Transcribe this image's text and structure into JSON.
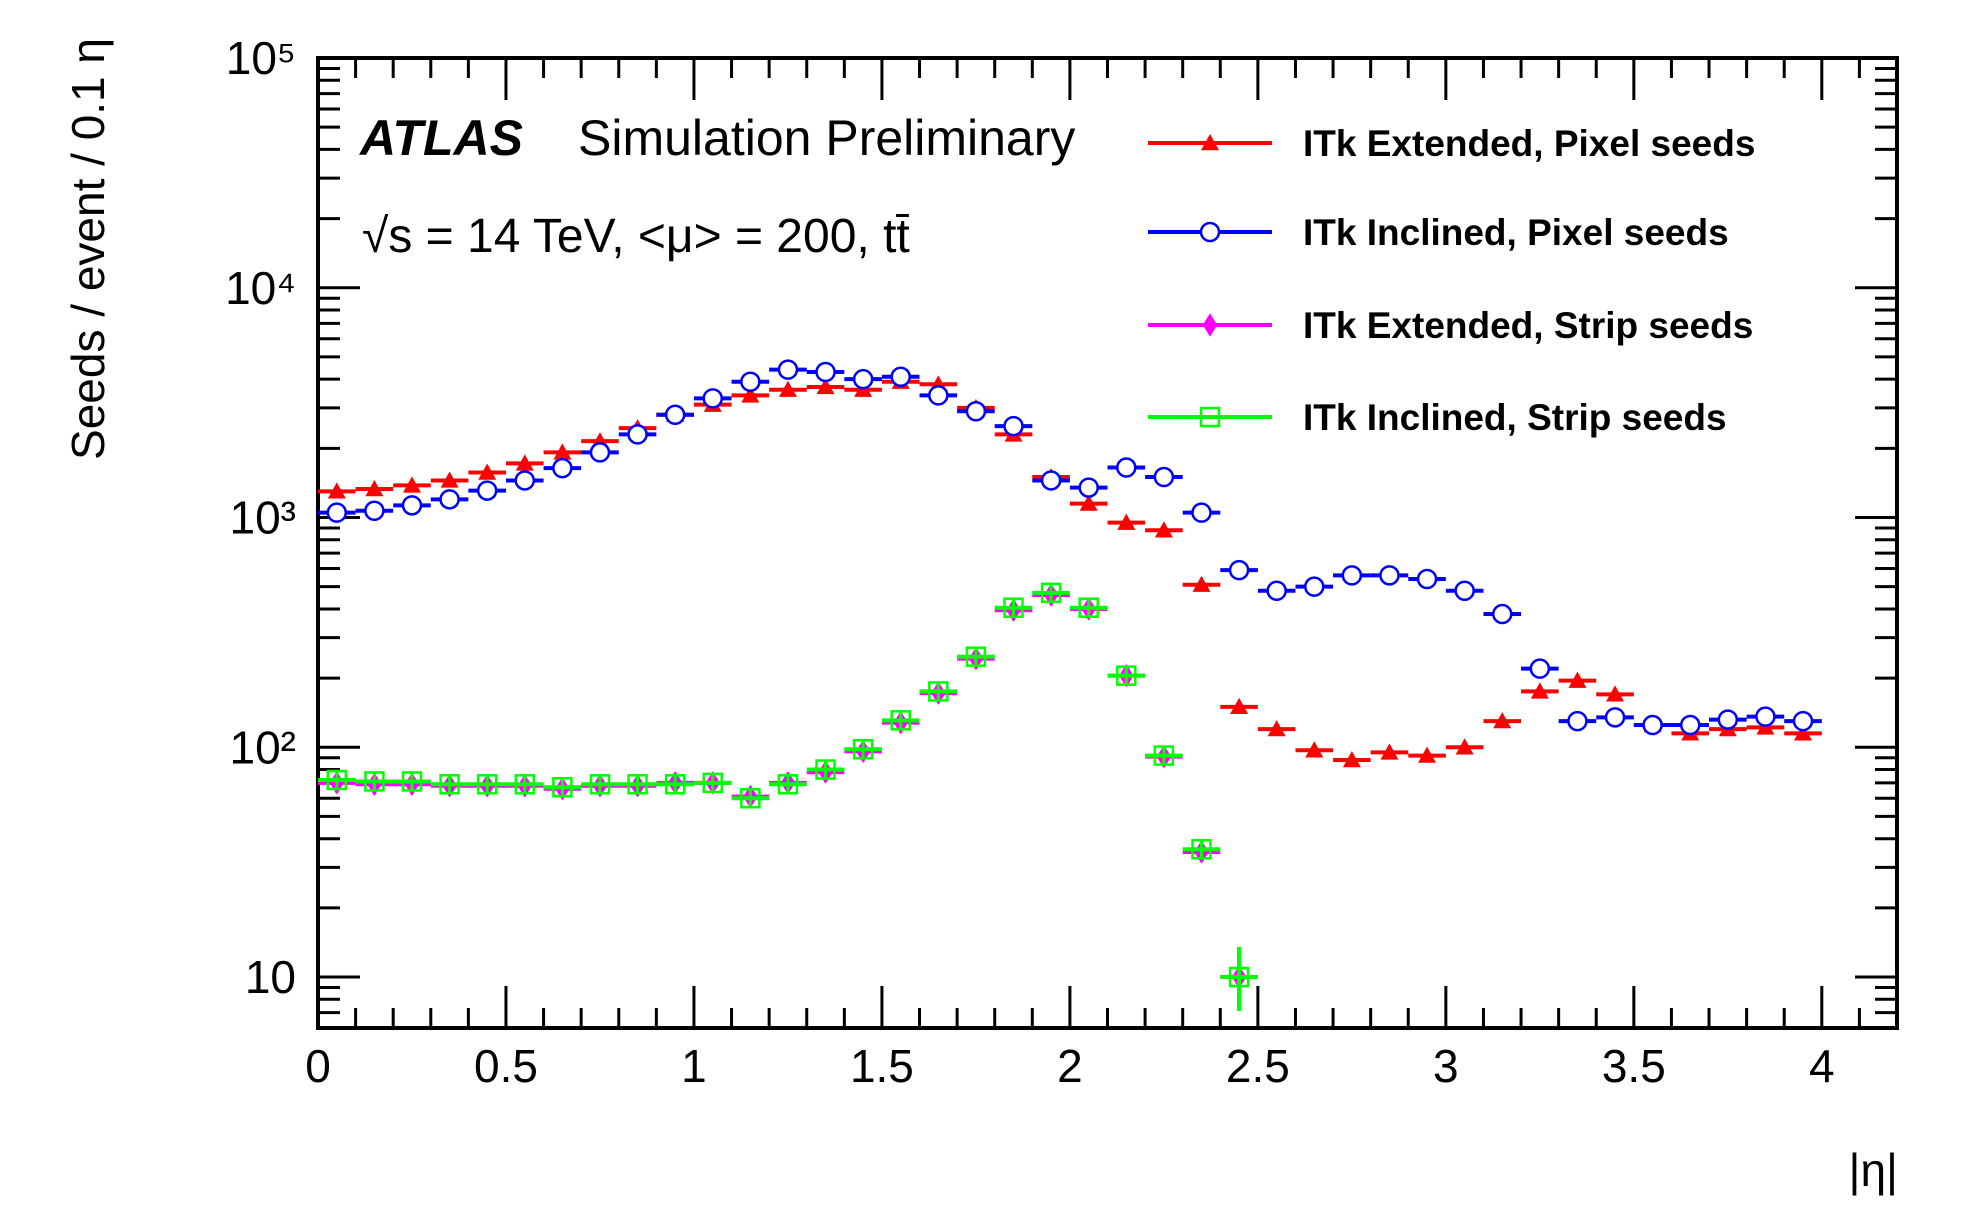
{
  "chart_data": {
    "type": "scatter",
    "title": "",
    "experiment": "ATLAS",
    "subtitle": "Simulation Preliminary",
    "conditions": "√s = 14 TeV, <μ> = 200, tt̄",
    "xlabel": "|η|",
    "ylabel": "Seeds / event / 0.1 η",
    "xlim": [
      0,
      4.2
    ],
    "ylim": [
      6,
      100000
    ],
    "yscale": "log",
    "xticks": [
      "0",
      "0.5",
      "1",
      "1.5",
      "2",
      "2.5",
      "3",
      "3.5",
      "4"
    ],
    "yticks": [
      "10",
      "10²",
      "10³",
      "10⁴",
      "10⁵"
    ],
    "legend_position": "top-right",
    "x": [
      0.05,
      0.15,
      0.25,
      0.35,
      0.45,
      0.55,
      0.65,
      0.75,
      0.85,
      0.95,
      1.05,
      1.15,
      1.25,
      1.35,
      1.45,
      1.55,
      1.65,
      1.75,
      1.85,
      1.95,
      2.05,
      2.15,
      2.25,
      2.35,
      2.45,
      2.55,
      2.65,
      2.75,
      2.85,
      2.95,
      3.05,
      3.15,
      3.25,
      3.35,
      3.45,
      3.55,
      3.65,
      3.75,
      3.85,
      3.95
    ],
    "series": [
      {
        "name": "ITk Extended, Pixel seeds",
        "color": "#ff0000",
        "marker": "triangle",
        "values": [
          1300,
          1330,
          1380,
          1450,
          1570,
          1720,
          1920,
          2150,
          2450,
          2800,
          3100,
          3400,
          3600,
          3700,
          3600,
          3900,
          3800,
          3000,
          2300,
          1500,
          1150,
          950,
          880,
          510,
          150,
          120,
          97,
          88,
          95,
          92,
          100,
          130,
          175,
          195,
          170,
          125,
          115,
          120,
          122,
          115
        ]
      },
      {
        "name": "ITk Inclined, Pixel seeds",
        "color": "#0000ff",
        "marker": "open-circle",
        "values": [
          1050,
          1070,
          1130,
          1200,
          1310,
          1450,
          1640,
          1920,
          2300,
          2800,
          3300,
          3900,
          4400,
          4300,
          4000,
          4100,
          3400,
          2900,
          2500,
          1450,
          1350,
          1650,
          1500,
          1050,
          590,
          480,
          500,
          560,
          560,
          540,
          480,
          380,
          220,
          130,
          135,
          125,
          125,
          132,
          136,
          130
        ]
      },
      {
        "name": "ITk Extended, Strip seeds",
        "color": "#ff00ff",
        "marker": "diamond",
        "values": [
          70,
          69,
          69,
          68,
          68,
          68,
          66,
          68,
          68,
          70,
          70,
          61,
          70,
          78,
          96,
          128,
          172,
          243,
          395,
          460,
          400,
          205,
          91,
          35,
          10
        ]
      },
      {
        "name": "ITk Inclined, Strip seeds",
        "color": "#00ff00",
        "marker": "open-square",
        "values": [
          72,
          71,
          71,
          69,
          69,
          69,
          67,
          69,
          69,
          69,
          70,
          60,
          69,
          80,
          98,
          131,
          175,
          248,
          405,
          470,
          405,
          205,
          92,
          36,
          10
        ]
      }
    ]
  }
}
